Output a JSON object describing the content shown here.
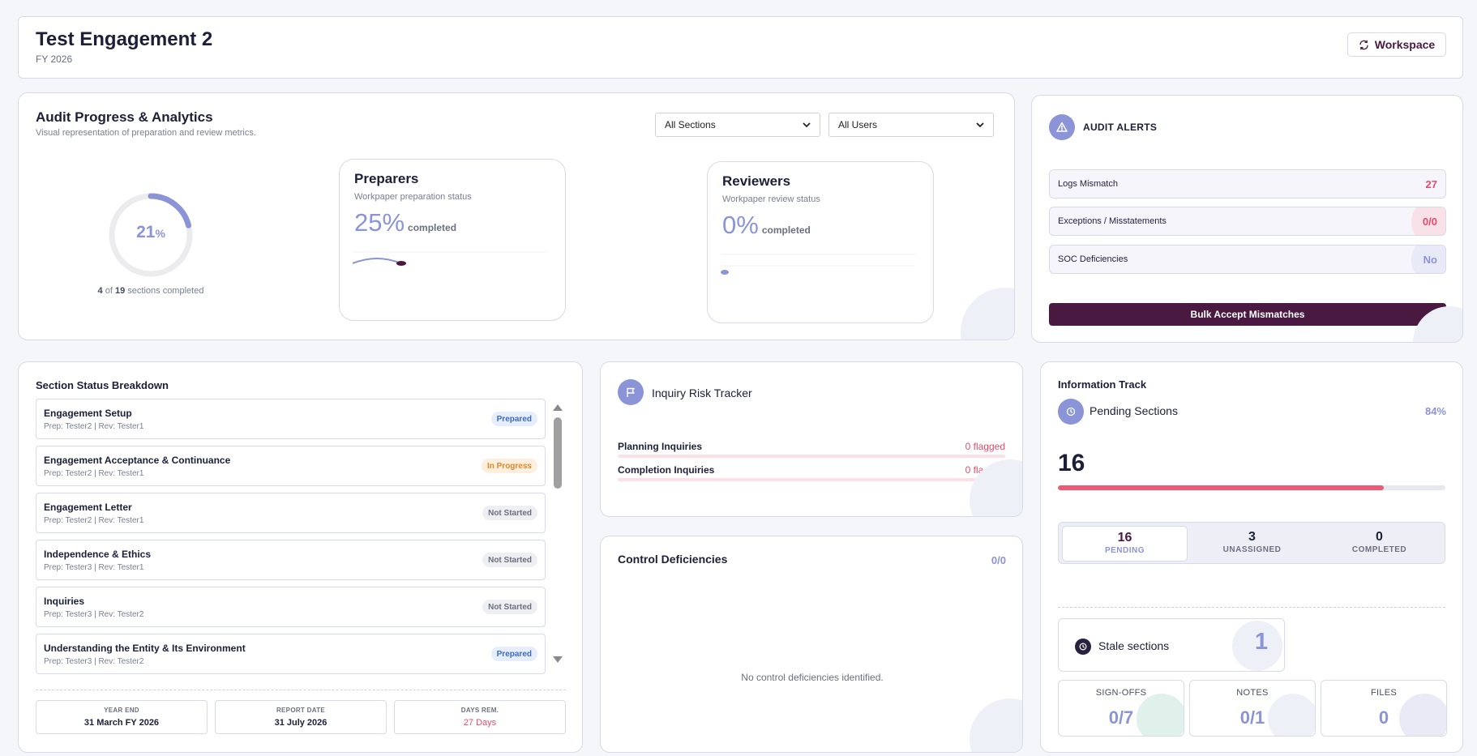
{
  "header": {
    "title": "Test Engagement 2",
    "subtitle": "FY 2026",
    "workspace_label": "Workspace"
  },
  "progress": {
    "title": "Audit Progress & Analytics",
    "subtitle": "Visual representation of preparation and review metrics.",
    "filters": {
      "sections": "All Sections",
      "users": "All Users"
    },
    "overall_percent": 21,
    "overall_value": "21",
    "overall_unit": "%",
    "completed_count": "4",
    "total_count": "19",
    "sections_text": "sections completed",
    "of_text": "of",
    "preparers": {
      "title": "Preparers",
      "subtitle": "Workpaper preparation status",
      "percent": 25,
      "percent_text": "25%",
      "completed_label": "completed"
    },
    "reviewers": {
      "title": "Reviewers",
      "subtitle": "Workpaper review status",
      "percent": 0,
      "percent_text": "0%",
      "completed_label": "completed"
    }
  },
  "alerts": {
    "title": "AUDIT ALERTS",
    "icon": "warning-triangle-icon",
    "items": [
      {
        "label": "Logs Mismatch",
        "value": "27"
      },
      {
        "label": "Exceptions / Misstatements",
        "value": "0/0"
      },
      {
        "label": "SOC Deficiencies",
        "value": "No"
      }
    ],
    "bulk_label": "Bulk Accept Mismatches"
  },
  "sections": {
    "title": "Section Status Breakdown",
    "rows": [
      {
        "name": "Engagement Setup",
        "people": "Prep: Tester2 | Rev: Tester1",
        "status": "Prepared"
      },
      {
        "name": "Engagement Acceptance & Continuance",
        "people": "Prep: Tester2 | Rev: Tester1",
        "status": "In Progress"
      },
      {
        "name": "Engagement Letter",
        "people": "Prep: Tester2 | Rev: Tester1",
        "status": "Not Started"
      },
      {
        "name": "Independence & Ethics",
        "people": "Prep: Tester3 | Rev: Tester1",
        "status": "Not Started"
      },
      {
        "name": "Inquiries",
        "people": "Prep: Tester3 | Rev: Tester2",
        "status": "Not Started"
      },
      {
        "name": "Understanding the Entity & Its Environment",
        "people": "Prep: Tester3 | Rev: Tester2",
        "status": "Prepared"
      }
    ],
    "dates": [
      {
        "label": "YEAR END",
        "value": "31 March FY 2026"
      },
      {
        "label": "REPORT DATE",
        "value": "31 July 2026"
      },
      {
        "label": "DAYS REM.",
        "value": "27 Days"
      }
    ]
  },
  "inquiry": {
    "title": "Inquiry Risk Tracker",
    "icon": "flag-icon",
    "rows": [
      {
        "label": "Planning Inquiries",
        "value": "0 flagged"
      },
      {
        "label": "Completion Inquiries",
        "value": "0 flagged"
      }
    ]
  },
  "control": {
    "title": "Control Deficiencies",
    "count": "0/0",
    "empty": "No control deficiencies identified."
  },
  "info": {
    "title": "Information Track",
    "pending_label": "Pending Sections",
    "pending_percent_text": "84%",
    "pending_percent": 84,
    "pending_count": "16",
    "segments": [
      {
        "number": "16",
        "label": "PENDING"
      },
      {
        "number": "3",
        "label": "UNASSIGNED"
      },
      {
        "number": "0",
        "label": "COMPLETED"
      }
    ],
    "stale_label": "Stale sections",
    "stale_value": "1",
    "stats": [
      {
        "label": "SIGN-OFFS",
        "value": "0/7"
      },
      {
        "label": "NOTES",
        "value": "0/1"
      },
      {
        "label": "FILES",
        "value": "0"
      }
    ]
  },
  "colors": {
    "accent": "#8b94d6",
    "brand": "#4a1942",
    "danger": "#e84b6a",
    "in_progress": "#e0892a"
  }
}
